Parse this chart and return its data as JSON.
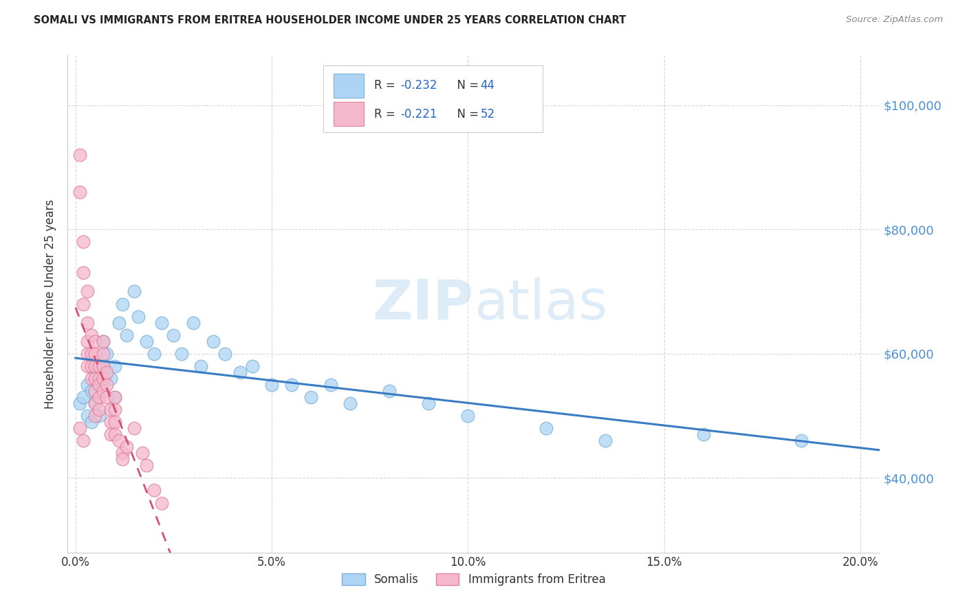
{
  "title": "SOMALI VS IMMIGRANTS FROM ERITREA HOUSEHOLDER INCOME UNDER 25 YEARS CORRELATION CHART",
  "source": "Source: ZipAtlas.com",
  "ylabel": "Householder Income Under 25 years",
  "xlabel_ticks": [
    "0.0%",
    "5.0%",
    "10.0%",
    "15.0%",
    "20.0%"
  ],
  "xlabel_vals": [
    0.0,
    0.05,
    0.1,
    0.15,
    0.2
  ],
  "ylabel_ticks": [
    "$40,000",
    "$60,000",
    "$80,000",
    "$100,000"
  ],
  "ylabel_vals": [
    40000,
    60000,
    80000,
    100000
  ],
  "xlim": [
    -0.002,
    0.205
  ],
  "ylim": [
    28000,
    108000
  ],
  "somali_R": -0.232,
  "somali_N": 44,
  "eritrea_R": -0.221,
  "eritrea_N": 52,
  "somali_color": "#add4f5",
  "eritrea_color": "#f5b8cc",
  "somali_edge_color": "#7ab0d8",
  "eritrea_edge_color": "#e080a0",
  "somali_line_color": "#3a7cc4",
  "eritrea_line_color": "#d45070",
  "watermark_color": "#d0e8f8",
  "somali_scatter": [
    [
      0.001,
      52000
    ],
    [
      0.002,
      53000
    ],
    [
      0.003,
      55000
    ],
    [
      0.003,
      50000
    ],
    [
      0.004,
      54000
    ],
    [
      0.004,
      49000
    ],
    [
      0.005,
      57000
    ],
    [
      0.005,
      52000
    ],
    [
      0.006,
      55000
    ],
    [
      0.006,
      50000
    ],
    [
      0.007,
      62000
    ],
    [
      0.007,
      58000
    ],
    [
      0.008,
      60000
    ],
    [
      0.009,
      56000
    ],
    [
      0.01,
      58000
    ],
    [
      0.01,
      53000
    ],
    [
      0.011,
      65000
    ],
    [
      0.012,
      68000
    ],
    [
      0.013,
      63000
    ],
    [
      0.015,
      70000
    ],
    [
      0.016,
      66000
    ],
    [
      0.018,
      62000
    ],
    [
      0.02,
      60000
    ],
    [
      0.022,
      65000
    ],
    [
      0.025,
      63000
    ],
    [
      0.027,
      60000
    ],
    [
      0.03,
      65000
    ],
    [
      0.032,
      58000
    ],
    [
      0.035,
      62000
    ],
    [
      0.038,
      60000
    ],
    [
      0.042,
      57000
    ],
    [
      0.045,
      58000
    ],
    [
      0.05,
      55000
    ],
    [
      0.055,
      55000
    ],
    [
      0.06,
      53000
    ],
    [
      0.065,
      55000
    ],
    [
      0.07,
      52000
    ],
    [
      0.08,
      54000
    ],
    [
      0.09,
      52000
    ],
    [
      0.1,
      50000
    ],
    [
      0.12,
      48000
    ],
    [
      0.135,
      46000
    ],
    [
      0.16,
      47000
    ],
    [
      0.185,
      46000
    ]
  ],
  "eritrea_scatter": [
    [
      0.001,
      92000
    ],
    [
      0.001,
      86000
    ],
    [
      0.002,
      78000
    ],
    [
      0.002,
      73000
    ],
    [
      0.002,
      68000
    ],
    [
      0.003,
      70000
    ],
    [
      0.003,
      65000
    ],
    [
      0.003,
      62000
    ],
    [
      0.003,
      60000
    ],
    [
      0.003,
      58000
    ],
    [
      0.004,
      63000
    ],
    [
      0.004,
      60000
    ],
    [
      0.004,
      58000
    ],
    [
      0.004,
      56000
    ],
    [
      0.005,
      62000
    ],
    [
      0.005,
      60000
    ],
    [
      0.005,
      58000
    ],
    [
      0.005,
      56000
    ],
    [
      0.005,
      54000
    ],
    [
      0.005,
      52000
    ],
    [
      0.005,
      50000
    ],
    [
      0.006,
      58000
    ],
    [
      0.006,
      56000
    ],
    [
      0.006,
      55000
    ],
    [
      0.006,
      53000
    ],
    [
      0.006,
      51000
    ],
    [
      0.007,
      62000
    ],
    [
      0.007,
      60000
    ],
    [
      0.007,
      58000
    ],
    [
      0.007,
      56000
    ],
    [
      0.007,
      54000
    ],
    [
      0.008,
      57000
    ],
    [
      0.008,
      55000
    ],
    [
      0.008,
      53000
    ],
    [
      0.009,
      51000
    ],
    [
      0.009,
      49000
    ],
    [
      0.009,
      47000
    ],
    [
      0.01,
      53000
    ],
    [
      0.01,
      51000
    ],
    [
      0.01,
      49000
    ],
    [
      0.01,
      47000
    ],
    [
      0.011,
      46000
    ],
    [
      0.012,
      44000
    ],
    [
      0.012,
      43000
    ],
    [
      0.013,
      45000
    ],
    [
      0.015,
      48000
    ],
    [
      0.017,
      44000
    ],
    [
      0.018,
      42000
    ],
    [
      0.02,
      38000
    ],
    [
      0.022,
      36000
    ],
    [
      0.001,
      48000
    ],
    [
      0.002,
      46000
    ]
  ],
  "background_color": "#ffffff",
  "grid_color": "#cccccc"
}
